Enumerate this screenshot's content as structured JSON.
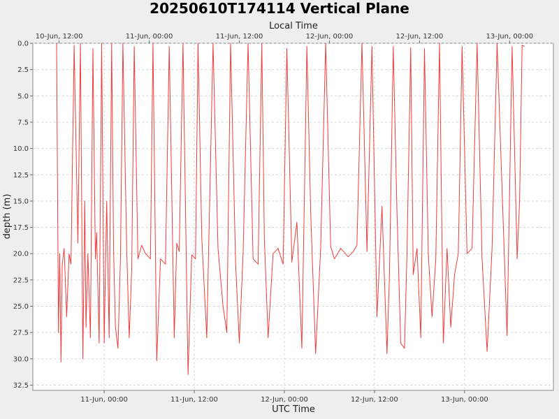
{
  "chart_data": {
    "type": "line",
    "title": "20250610T174114 Vertical Plane",
    "top_axis_label": "Local Time",
    "xlabel": "UTC Time",
    "ylabel": "depth (m)",
    "y_inverted": true,
    "ylim": [
      0,
      33
    ],
    "xlim": [
      "2025-06-10T14:30",
      "2025-06-13T11:50"
    ],
    "top_axis_offset_hours": 6,
    "x_ticks_bottom": [
      {
        "t": "2025-06-11T00:00",
        "label": "11-Jun, 00:00"
      },
      {
        "t": "2025-06-11T12:00",
        "label": "11-Jun, 12:00"
      },
      {
        "t": "2025-06-12T00:00",
        "label": "12-Jun, 00:00"
      },
      {
        "t": "2025-06-12T12:00",
        "label": "12-Jun, 12:00"
      },
      {
        "t": "2025-06-13T00:00",
        "label": "13-Jun, 00:00"
      }
    ],
    "x_ticks_top": [
      {
        "t": "2025-06-10T18:00",
        "label": "10-Jun, 12:00"
      },
      {
        "t": "2025-06-11T06:00",
        "label": "11-Jun, 00:00"
      },
      {
        "t": "2025-06-11T18:00",
        "label": "11-Jun, 12:00"
      },
      {
        "t": "2025-06-12T06:00",
        "label": "12-Jun, 00:00"
      },
      {
        "t": "2025-06-12T18:00",
        "label": "12-Jun, 12:00"
      },
      {
        "t": "2025-06-13T06:00",
        "label": "13-Jun, 00:00"
      }
    ],
    "y_ticks": [
      "0.0",
      "2.5",
      "5.0",
      "7.5",
      "10.0",
      "12.5",
      "15.0",
      "17.5",
      "20.0",
      "22.5",
      "25.0",
      "27.5",
      "30.0",
      "32.5"
    ],
    "grid": true,
    "line_color": "#f03c3c",
    "series": [
      {
        "x": [
          "2025-06-10T17:40",
          "2025-06-10T17:55",
          "2025-06-10T18:05",
          "2025-06-10T18:15",
          "2025-06-10T18:25",
          "2025-06-10T18:40",
          "2025-06-10T19:00",
          "2025-06-10T19:20",
          "2025-06-10T19:35",
          "2025-06-10T20:00",
          "2025-06-10T20:30",
          "2025-06-10T20:50",
          "2025-06-10T21:10",
          "2025-06-10T21:25",
          "2025-06-10T21:35",
          "2025-06-10T21:50",
          "2025-06-10T22:10",
          "2025-06-10T22:30",
          "2025-06-10T22:50",
          "2025-06-10T23:00",
          "2025-06-10T23:20",
          "2025-06-10T23:40",
          "2025-06-11T00:00",
          "2025-06-11T00:20",
          "2025-06-11T00:40",
          "2025-06-11T01:00",
          "2025-06-11T01:15",
          "2025-06-11T01:30",
          "2025-06-11T01:50",
          "2025-06-11T02:10",
          "2025-06-11T02:30",
          "2025-06-11T03:00",
          "2025-06-11T03:20",
          "2025-06-11T03:40",
          "2025-06-11T04:00",
          "2025-06-11T04:30",
          "2025-06-11T05:00",
          "2025-06-11T05:30",
          "2025-06-11T06:10",
          "2025-06-11T06:30",
          "2025-06-11T07:00",
          "2025-06-11T07:30",
          "2025-06-11T08:10",
          "2025-06-11T08:40",
          "2025-06-11T09:20",
          "2025-06-11T09:40",
          "2025-06-11T10:00",
          "2025-06-11T10:30",
          "2025-06-11T11:10",
          "2025-06-11T11:40",
          "2025-06-11T12:10",
          "2025-06-11T12:30",
          "2025-06-11T13:00",
          "2025-06-11T13:40",
          "2025-06-11T14:30",
          "2025-06-11T15:10",
          "2025-06-11T15:50",
          "2025-06-11T16:20",
          "2025-06-11T16:50",
          "2025-06-11T17:30",
          "2025-06-11T18:00",
          "2025-06-11T18:30",
          "2025-06-11T19:10",
          "2025-06-11T19:50",
          "2025-06-11T20:30",
          "2025-06-11T21:00",
          "2025-06-11T21:20",
          "2025-06-11T21:50",
          "2025-06-11T22:30",
          "2025-06-11T23:10",
          "2025-06-11T23:50",
          "2025-06-12T00:20",
          "2025-06-12T01:00",
          "2025-06-12T01:40",
          "2025-06-12T02:20",
          "2025-06-12T03:00",
          "2025-06-12T03:30",
          "2025-06-12T04:10",
          "2025-06-12T04:50",
          "2025-06-12T05:30",
          "2025-06-12T06:10",
          "2025-06-12T06:40",
          "2025-06-12T07:30",
          "2025-06-12T08:30",
          "2025-06-12T09:10",
          "2025-06-12T09:40",
          "2025-06-12T10:20",
          "2025-06-12T11:00",
          "2025-06-12T11:40",
          "2025-06-12T12:20",
          "2025-06-12T13:00",
          "2025-06-12T13:40",
          "2025-06-12T14:00",
          "2025-06-12T14:30",
          "2025-06-12T15:00",
          "2025-06-12T15:30",
          "2025-06-12T16:00",
          "2025-06-12T16:20",
          "2025-06-12T16:50",
          "2025-06-12T17:10",
          "2025-06-12T17:40",
          "2025-06-12T18:10",
          "2025-06-12T18:40",
          "2025-06-12T19:10",
          "2025-06-12T19:40",
          "2025-06-12T20:10",
          "2025-06-12T20:40",
          "2025-06-12T21:10",
          "2025-06-12T21:40",
          "2025-06-12T22:10",
          "2025-06-12T22:40",
          "2025-06-12T23:10",
          "2025-06-12T23:40",
          "2025-06-13T00:20",
          "2025-06-13T01:00",
          "2025-06-13T01:40",
          "2025-06-13T02:20",
          "2025-06-13T03:00",
          "2025-06-13T03:40",
          "2025-06-13T04:20",
          "2025-06-13T05:00",
          "2025-06-13T05:40",
          "2025-06-13T06:20",
          "2025-06-13T07:00",
          "2025-06-13T07:20",
          "2025-06-13T07:40",
          "2025-06-13T08:00"
        ],
        "values": [
          0,
          27.5,
          20,
          30.3,
          21,
          19.5,
          26,
          20,
          21,
          0.2,
          19,
          0,
          30,
          15,
          27,
          20,
          28,
          0.5,
          20.5,
          18,
          28.5,
          0,
          28.5,
          15,
          28,
          0,
          19.5,
          27,
          29,
          20.5,
          0,
          19.5,
          28,
          21.5,
          0.3,
          20.5,
          19.2,
          20,
          20.5,
          0,
          30.2,
          20.5,
          21,
          0.3,
          28,
          19,
          19.8,
          0,
          31.5,
          20.1,
          20.5,
          0,
          18.5,
          28,
          0,
          19.5,
          25,
          27.5,
          0,
          20.8,
          28.5,
          20,
          0,
          20.5,
          21,
          0,
          18.5,
          28,
          20,
          19.5,
          21,
          0.5,
          20.8,
          17,
          29,
          0.3,
          16,
          29.5,
          19.5,
          0,
          19.3,
          20.5,
          19.5,
          20.3,
          19.8,
          19.2,
          0,
          19.8,
          0.3,
          26,
          15.5,
          29.5,
          22,
          0.3,
          16,
          28.5,
          29,
          19.8,
          0.4,
          22,
          19.5,
          28,
          0.5,
          20,
          26,
          20.5,
          0,
          28.5,
          19.5,
          27,
          22,
          20,
          0.3,
          20,
          19.5,
          0,
          20.5,
          29.3,
          19.5,
          0,
          14,
          27.8,
          0.3,
          20.5,
          15,
          0.2,
          0.3
        ]
      }
    ]
  }
}
